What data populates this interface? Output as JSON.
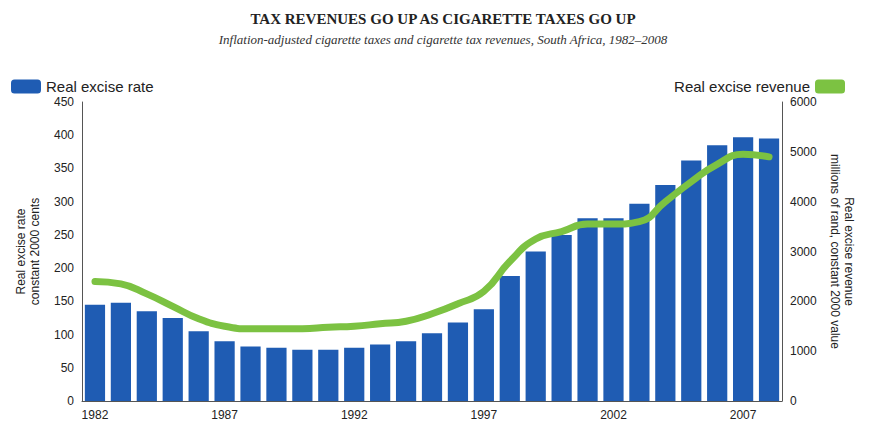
{
  "chart_data": {
    "type": "bar",
    "title": "TAX REVENUES GO UP AS CIGARETTE TAXES GO UP",
    "subtitle": "Inflation-adjusted cigarette taxes and cigarette tax revenues, South Africa, 1982–2008",
    "ylabel": [
      "Real excise rate",
      "constant 2000 cents"
    ],
    "y2label": [
      "Real excise revenue",
      "millions of rand, constant 2000 value"
    ],
    "categories": [
      "1982",
      null,
      null,
      null,
      null,
      "1987",
      null,
      null,
      null,
      null,
      "1992",
      null,
      null,
      null,
      null,
      "1997",
      null,
      null,
      null,
      null,
      "2002",
      null,
      null,
      null,
      null,
      "2007",
      null
    ],
    "series": [
      {
        "name": "Real excise rate",
        "type": "bar",
        "color": "#1f5cb3",
        "values": [
          145,
          148,
          135,
          125,
          105,
          90,
          82,
          80,
          77,
          77,
          80,
          85,
          90,
          102,
          118,
          138,
          188,
          225,
          250,
          275,
          275,
          297,
          325,
          362,
          385,
          397,
          395
        ]
      },
      {
        "name": "Real excise revenue",
        "type": "line",
        "color": "#7cc242",
        "axis": "y2",
        "values": [
          2400,
          2350,
          2150,
          1900,
          1650,
          1500,
          1450,
          1450,
          1450,
          1480,
          1500,
          1550,
          1600,
          1750,
          1950,
          2200,
          2800,
          3250,
          3400,
          3550,
          3550,
          3600,
          4000,
          4400,
          4750,
          4950,
          4900
        ]
      }
    ],
    "ylim": [
      0,
      450
    ],
    "yticks": [
      0,
      50,
      100,
      150,
      200,
      250,
      300,
      350,
      400,
      450
    ],
    "y2lim": [
      0,
      6000
    ],
    "y2ticks": [
      0,
      1000,
      2000,
      3000,
      4000,
      5000,
      6000
    ],
    "grid": false,
    "legend": "top"
  }
}
